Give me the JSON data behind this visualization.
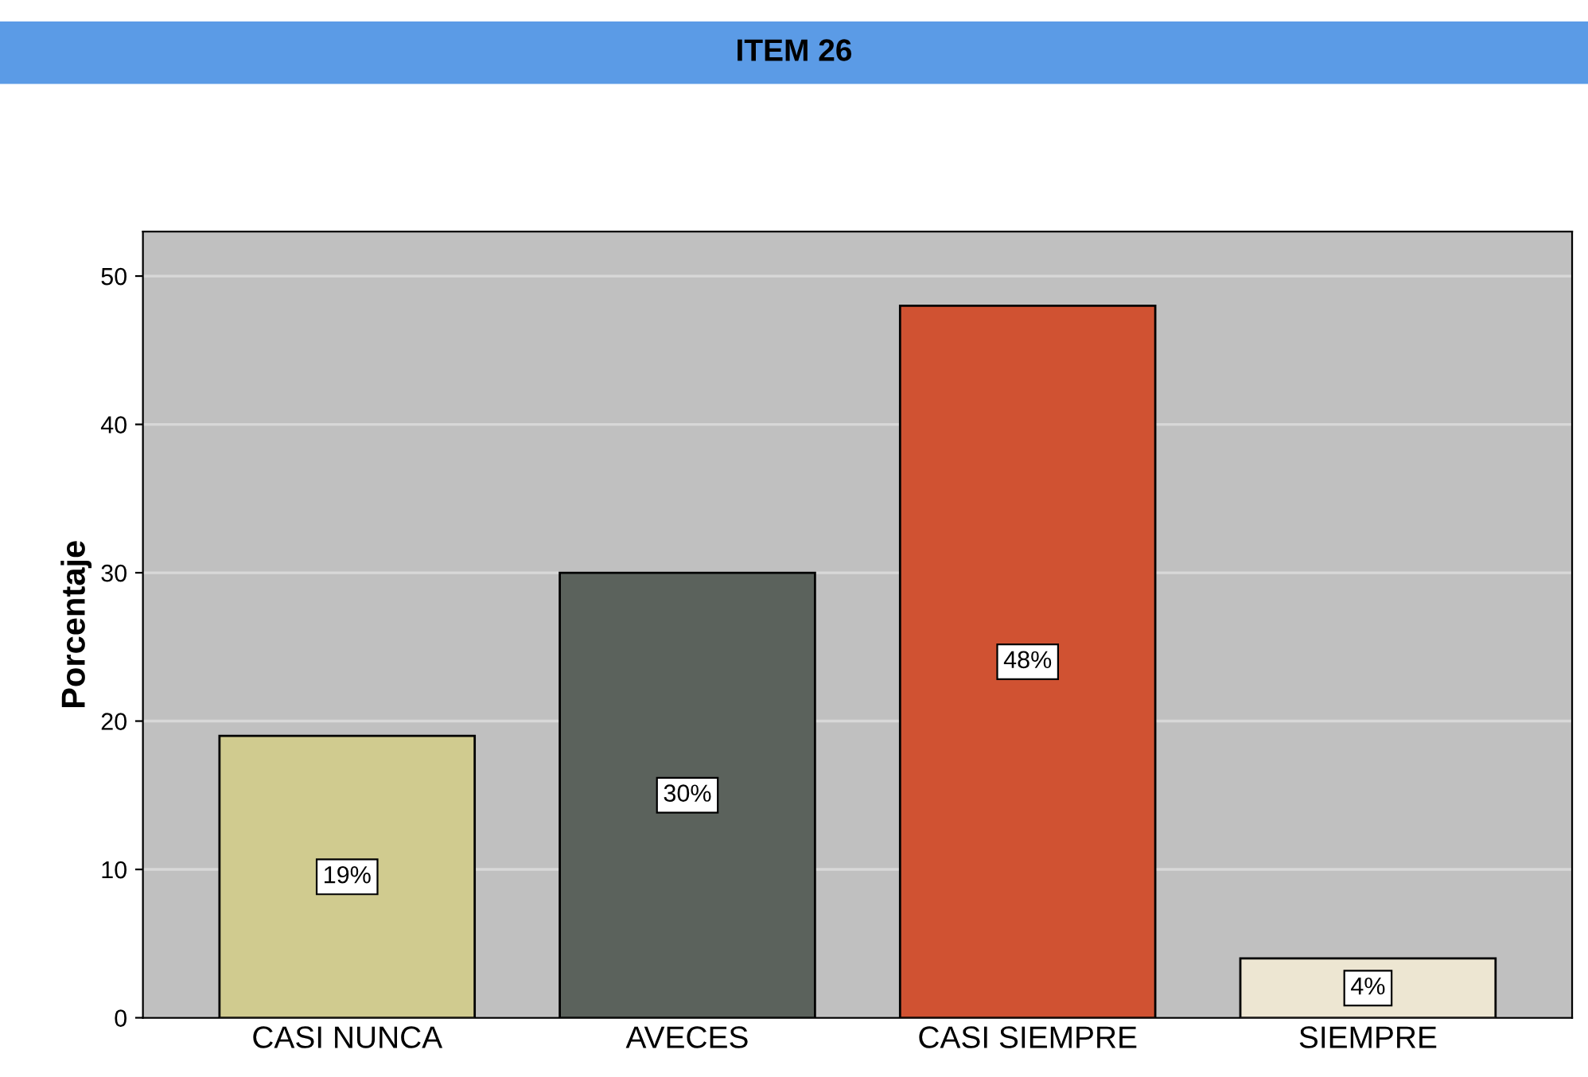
{
  "chart_data": {
    "type": "bar",
    "title": "ITEM 26",
    "ylabel": "Porcentaje",
    "categories": [
      "CASI NUNCA",
      "AVECES",
      "CASI SIEMPRE",
      "SIEMPRE"
    ],
    "values": [
      19,
      30,
      48,
      4
    ],
    "colors": [
      "#d0cb8f",
      "#5b625c",
      "#d05232",
      "#ede6d2"
    ],
    "value_labels": [
      "19%",
      "30%",
      "48%",
      "4%"
    ],
    "ylim": [
      0,
      53
    ],
    "yticks": [
      0,
      10,
      20,
      30,
      40,
      50
    ],
    "grid": "y"
  }
}
